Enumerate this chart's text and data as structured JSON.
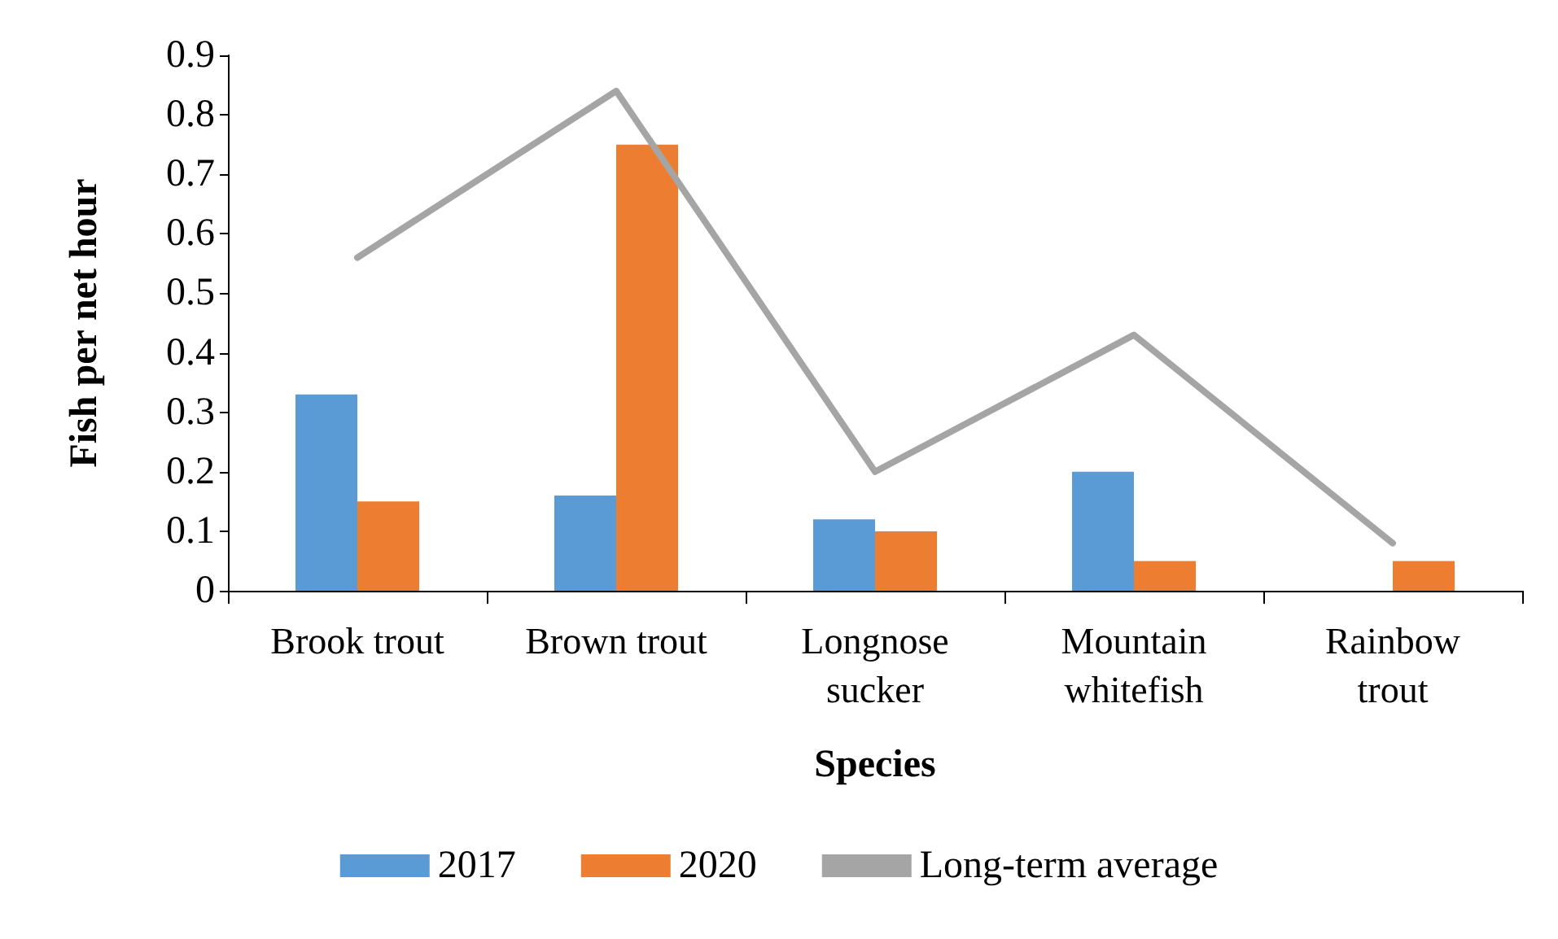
{
  "chart_data": {
    "type": "bar",
    "xlabel": "Species",
    "ylabel": "Fish per net hour",
    "categories": [
      "Brook trout",
      "Brown trout",
      "Longnose\nsucker",
      "Mountain\nwhitefish",
      "Rainbow\ntrout"
    ],
    "series": [
      {
        "name": "2017",
        "color": "#5b9bd5",
        "values": [
          0.33,
          0.16,
          0.12,
          0.2,
          0
        ]
      },
      {
        "name": "2020",
        "color": "#ed7d31",
        "values": [
          0.15,
          0.75,
          0.1,
          0.05,
          0.05
        ]
      },
      {
        "name": "Long-term average",
        "type": "line",
        "color": "#a5a5a5",
        "values": [
          0.56,
          0.84,
          0.2,
          0.43,
          0.08
        ]
      }
    ],
    "ylim": [
      0,
      0.9
    ],
    "yticks": [
      0,
      0.1,
      0.2,
      0.3,
      0.4,
      0.5,
      0.6,
      0.7,
      0.8,
      0.9
    ],
    "grid": false,
    "legend": "bottom",
    "marker": "none"
  }
}
